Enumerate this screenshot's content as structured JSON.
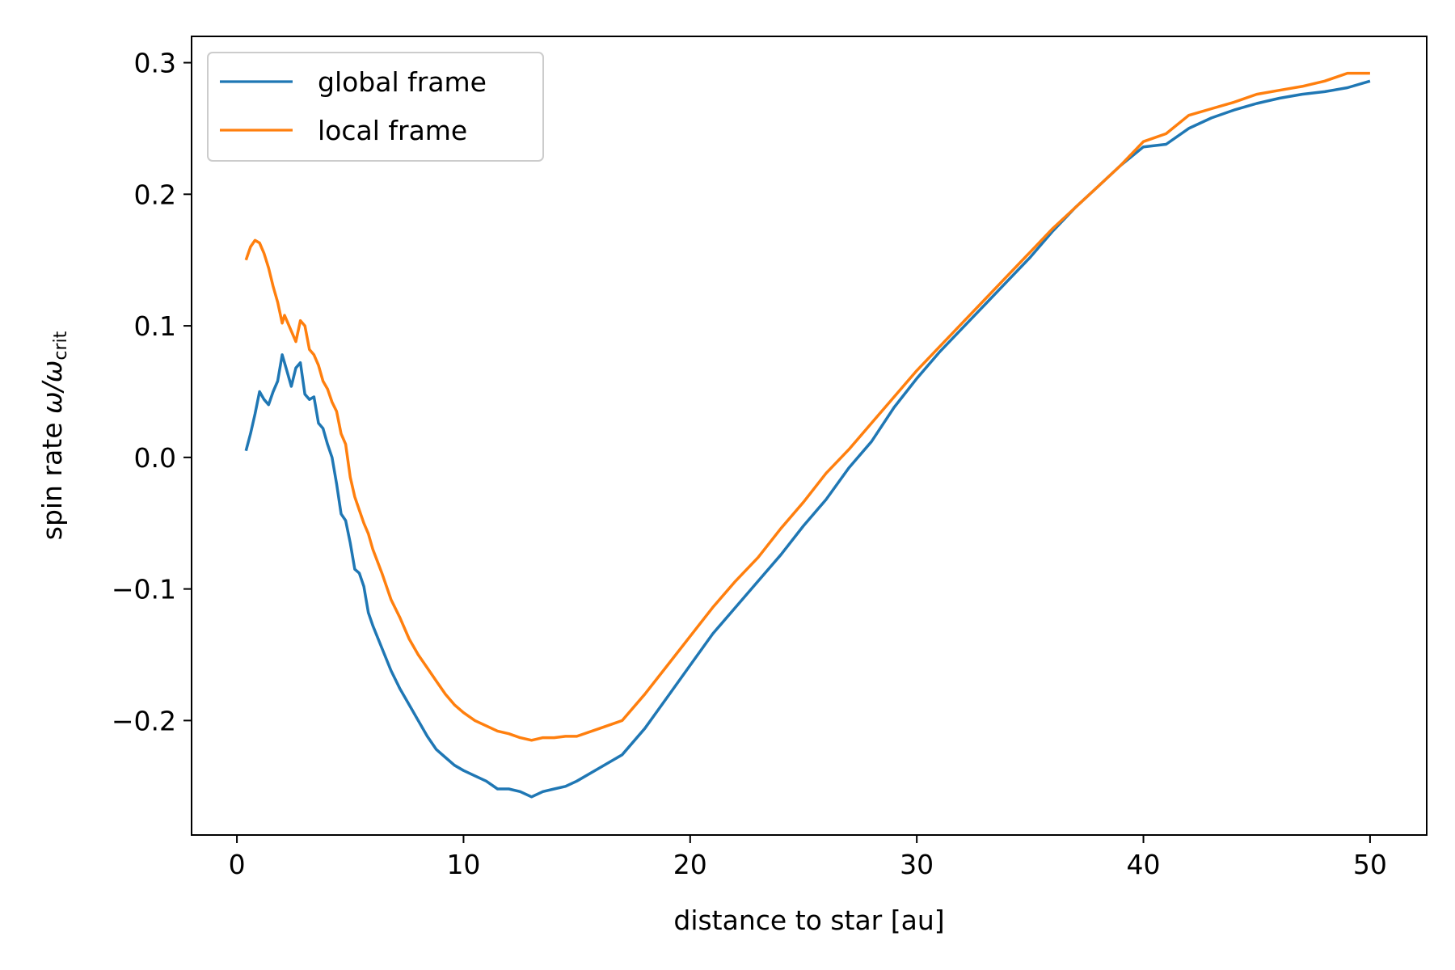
{
  "chart_data": {
    "type": "line",
    "title": "",
    "xlabel": "distance to star [au]",
    "ylabel_main": "spin rate ",
    "ylabel_math": "ω/ω",
    "ylabel_sub": "crit",
    "xlim": [
      -2,
      52.5
    ],
    "ylim": [
      -0.287,
      0.32
    ],
    "xticks": [
      {
        "value": 0,
        "label": "0"
      },
      {
        "value": 10,
        "label": "10"
      },
      {
        "value": 20,
        "label": "20"
      },
      {
        "value": 30,
        "label": "30"
      },
      {
        "value": 40,
        "label": "40"
      },
      {
        "value": 50,
        "label": "50"
      }
    ],
    "yticks": [
      {
        "value": -0.2,
        "label": "−0.2"
      },
      {
        "value": -0.1,
        "label": "−0.1"
      },
      {
        "value": 0.0,
        "label": "0.0"
      },
      {
        "value": 0.1,
        "label": "0.1"
      },
      {
        "value": 0.2,
        "label": "0.2"
      },
      {
        "value": 0.3,
        "label": "0.3"
      }
    ],
    "grid": false,
    "legend_position": "top-left",
    "series": [
      {
        "name": "global frame",
        "color": "#1f77b4",
        "x": [
          0.4,
          0.6,
          0.8,
          1.0,
          1.2,
          1.4,
          1.6,
          1.8,
          2.0,
          2.1,
          2.2,
          2.4,
          2.6,
          2.8,
          3.0,
          3.2,
          3.4,
          3.6,
          3.8,
          4.0,
          4.2,
          4.4,
          4.6,
          4.8,
          5.0,
          5.2,
          5.4,
          5.6,
          5.8,
          6.0,
          6.4,
          6.8,
          7.2,
          7.6,
          8.0,
          8.4,
          8.8,
          9.2,
          9.6,
          10.0,
          10.5,
          11.0,
          11.5,
          12.0,
          12.5,
          13.0,
          13.5,
          14.0,
          14.5,
          15.0,
          16.0,
          17.0,
          18.0,
          19.0,
          20.0,
          21.0,
          22.0,
          23.0,
          24.0,
          25.0,
          26.0,
          27.0,
          28.0,
          29.0,
          30.0,
          31.0,
          32.0,
          33.0,
          34.0,
          35.0,
          36.0,
          37.0,
          38.0,
          39.0,
          40.0,
          41.0,
          42.0,
          43.0,
          44.0,
          45.0,
          46.0,
          47.0,
          48.0,
          49.0,
          50.0
        ],
        "y": [
          0.005,
          0.018,
          0.033,
          0.05,
          0.044,
          0.04,
          0.05,
          0.058,
          0.078,
          0.072,
          0.066,
          0.054,
          0.068,
          0.072,
          0.048,
          0.044,
          0.046,
          0.026,
          0.022,
          0.01,
          0.0,
          -0.02,
          -0.043,
          -0.048,
          -0.065,
          -0.085,
          -0.088,
          -0.098,
          -0.118,
          -0.128,
          -0.145,
          -0.162,
          -0.176,
          -0.188,
          -0.2,
          -0.212,
          -0.222,
          -0.228,
          -0.234,
          -0.238,
          -0.242,
          -0.246,
          -0.252,
          -0.252,
          -0.254,
          -0.258,
          -0.254,
          -0.252,
          -0.25,
          -0.246,
          -0.236,
          -0.226,
          -0.206,
          -0.182,
          -0.158,
          -0.134,
          -0.114,
          -0.094,
          -0.074,
          -0.052,
          -0.032,
          -0.008,
          0.012,
          0.038,
          0.06,
          0.08,
          0.098,
          0.116,
          0.134,
          0.152,
          0.172,
          0.19,
          0.206,
          0.222,
          0.236,
          0.238,
          0.25,
          0.258,
          0.264,
          0.269,
          0.273,
          0.276,
          0.278,
          0.281,
          0.286
        ]
      },
      {
        "name": "local frame",
        "color": "#ff7f0e",
        "x": [
          0.4,
          0.6,
          0.8,
          1.0,
          1.2,
          1.4,
          1.6,
          1.8,
          2.0,
          2.1,
          2.2,
          2.4,
          2.6,
          2.8,
          3.0,
          3.2,
          3.4,
          3.6,
          3.8,
          4.0,
          4.2,
          4.4,
          4.6,
          4.8,
          5.0,
          5.2,
          5.4,
          5.6,
          5.8,
          6.0,
          6.4,
          6.8,
          7.2,
          7.6,
          8.0,
          8.4,
          8.8,
          9.2,
          9.6,
          10.0,
          10.5,
          11.0,
          11.5,
          12.0,
          12.5,
          13.0,
          13.5,
          14.0,
          14.5,
          15.0,
          16.0,
          17.0,
          18.0,
          19.0,
          20.0,
          21.0,
          22.0,
          23.0,
          24.0,
          25.0,
          26.0,
          27.0,
          28.0,
          29.0,
          30.0,
          31.0,
          32.0,
          33.0,
          34.0,
          35.0,
          36.0,
          37.0,
          38.0,
          39.0,
          40.0,
          41.0,
          42.0,
          43.0,
          44.0,
          45.0,
          46.0,
          47.0,
          48.0,
          49.0,
          50.0
        ],
        "y": [
          0.15,
          0.16,
          0.165,
          0.163,
          0.155,
          0.144,
          0.13,
          0.118,
          0.102,
          0.108,
          0.104,
          0.096,
          0.088,
          0.104,
          0.1,
          0.082,
          0.078,
          0.07,
          0.058,
          0.052,
          0.042,
          0.035,
          0.018,
          0.01,
          -0.015,
          -0.03,
          -0.04,
          -0.05,
          -0.058,
          -0.07,
          -0.088,
          -0.108,
          -0.122,
          -0.138,
          -0.15,
          -0.16,
          -0.17,
          -0.18,
          -0.188,
          -0.194,
          -0.2,
          -0.204,
          -0.208,
          -0.21,
          -0.213,
          -0.215,
          -0.213,
          -0.213,
          -0.212,
          -0.212,
          -0.206,
          -0.2,
          -0.18,
          -0.158,
          -0.136,
          -0.114,
          -0.094,
          -0.076,
          -0.054,
          -0.034,
          -0.012,
          0.006,
          0.026,
          0.046,
          0.066,
          0.084,
          0.102,
          0.12,
          0.138,
          0.156,
          0.174,
          0.19,
          0.206,
          0.222,
          0.24,
          0.246,
          0.26,
          0.265,
          0.27,
          0.276,
          0.279,
          0.282,
          0.286,
          0.292,
          0.292
        ]
      }
    ]
  }
}
